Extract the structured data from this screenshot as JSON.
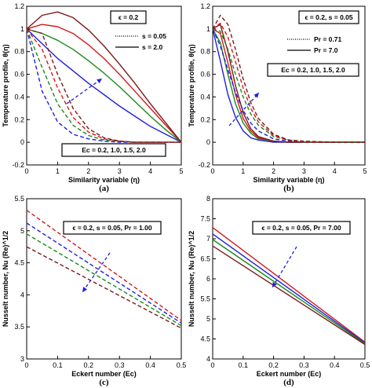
{
  "chart_data": [
    {
      "type": "line",
      "panel_label": "(a)",
      "xlabel": "Similarity variable (η)",
      "ylabel": "Temperature profile, θ(η)",
      "xlim": [
        0,
        5
      ],
      "ylim": [
        -0.2,
        1.2
      ],
      "xticks": [
        0,
        1,
        2,
        3,
        4,
        5
      ],
      "yticks": [
        -0.2,
        0,
        0.2,
        0.4,
        0.6,
        0.8,
        1,
        1.2
      ],
      "grid": false,
      "annotations": [
        "ϵ = 0.2",
        "Ec = 0.2, 1.0, 1.5, 2.0"
      ],
      "legend": {
        "placement": "top-right",
        "entries": [
          {
            "label": "s = 0.05",
            "dash": "dotted"
          },
          {
            "label": "s = 2.0",
            "dash": "solid"
          }
        ]
      },
      "series": [
        {
          "color": "#1f1fe0",
          "dash": "solid",
          "x": [
            0,
            0.5,
            1,
            1.5,
            2,
            2.5,
            3,
            3.5,
            4,
            4.5,
            5
          ],
          "y": [
            1.0,
            0.87,
            0.74,
            0.63,
            0.52,
            0.42,
            0.32,
            0.23,
            0.14,
            0.07,
            0.0
          ]
        },
        {
          "color": "#1a8a1a",
          "dash": "solid",
          "x": [
            0,
            0.5,
            1,
            1.5,
            2,
            2.5,
            3,
            3.5,
            4,
            4.5,
            5
          ],
          "y": [
            1.0,
            0.96,
            0.9,
            0.82,
            0.72,
            0.61,
            0.49,
            0.36,
            0.23,
            0.11,
            0.0
          ]
        },
        {
          "color": "#d41a1a",
          "dash": "solid",
          "x": [
            0,
            0.5,
            1,
            1.5,
            2,
            2.5,
            3,
            3.5,
            4,
            4.5,
            5
          ],
          "y": [
            1.0,
            1.04,
            1.02,
            0.96,
            0.86,
            0.74,
            0.6,
            0.45,
            0.3,
            0.15,
            0.0
          ]
        },
        {
          "color": "#7a1a1a",
          "dash": "solid",
          "x": [
            0,
            0.5,
            1,
            1.5,
            2,
            2.5,
            3,
            3.5,
            4,
            4.5,
            5
          ],
          "y": [
            1.0,
            1.12,
            1.15,
            1.1,
            0.99,
            0.85,
            0.69,
            0.52,
            0.34,
            0.17,
            0.0
          ]
        },
        {
          "color": "#1f1fe0",
          "dash": "dashed",
          "x": [
            0,
            0.5,
            1,
            1.5,
            2,
            2.5,
            3,
            3.5,
            4,
            4.5,
            5
          ],
          "y": [
            1.0,
            0.45,
            0.18,
            0.07,
            0.03,
            0.01,
            0.0,
            0.0,
            0.0,
            0.0,
            0.0
          ]
        },
        {
          "color": "#1a8a1a",
          "dash": "dashed",
          "x": [
            0,
            0.5,
            1,
            1.5,
            2,
            2.5,
            3,
            3.5,
            4,
            4.5,
            5
          ],
          "y": [
            1.0,
            0.66,
            0.34,
            0.15,
            0.06,
            0.02,
            0.01,
            0.0,
            0.0,
            0.0,
            0.0
          ]
        },
        {
          "color": "#d41a1a",
          "dash": "dashed",
          "x": [
            0,
            0.5,
            1,
            1.5,
            2,
            2.5,
            3,
            3.5,
            4,
            4.5,
            5
          ],
          "y": [
            1.0,
            0.82,
            0.48,
            0.22,
            0.09,
            0.03,
            0.01,
            0.0,
            0.0,
            0.0,
            0.0
          ]
        },
        {
          "color": "#7a1a1a",
          "dash": "dashed",
          "x": [
            0,
            0.5,
            1,
            1.5,
            2,
            2.5,
            3,
            3.5,
            4,
            4.5,
            5
          ],
          "y": [
            1.0,
            0.96,
            0.6,
            0.3,
            0.12,
            0.04,
            0.01,
            0.0,
            0.0,
            0.0,
            0.0
          ]
        }
      ]
    },
    {
      "type": "line",
      "panel_label": "(b)",
      "xlabel": "Similarity variable (η)",
      "ylabel": "Temperature profile, θ(η)",
      "xlim": [
        0,
        5
      ],
      "ylim": [
        -0.2,
        1.2
      ],
      "xticks": [
        0,
        1,
        2,
        3,
        4,
        5
      ],
      "yticks": [
        -0.2,
        0,
        0.2,
        0.4,
        0.6,
        0.8,
        1,
        1.2
      ],
      "grid": false,
      "annotations": [
        "ϵ = 0.2, s = 0.05",
        "Ec = 0.2, 1.0, 1.5, 2.0"
      ],
      "legend": {
        "placement": "top-right",
        "entries": [
          {
            "label": "Pr = 0.71",
            "dash": "dotted"
          },
          {
            "label": "Pr = 7.0",
            "dash": "solid"
          }
        ]
      },
      "series": [
        {
          "color": "#1f1fe0",
          "dash": "solid",
          "x": [
            0,
            0.25,
            0.5,
            0.75,
            1,
            1.25,
            1.5,
            2,
            2.5,
            3,
            4,
            5
          ],
          "y": [
            1.0,
            0.72,
            0.42,
            0.22,
            0.1,
            0.04,
            0.02,
            0.0,
            0.0,
            0.0,
            0.0,
            0.0
          ]
        },
        {
          "color": "#1a8a1a",
          "dash": "solid",
          "x": [
            0,
            0.25,
            0.5,
            0.75,
            1,
            1.25,
            1.5,
            2,
            2.5,
            3,
            4,
            5
          ],
          "y": [
            1.0,
            0.88,
            0.6,
            0.34,
            0.17,
            0.08,
            0.03,
            0.01,
            0.0,
            0.0,
            0.0,
            0.0
          ]
        },
        {
          "color": "#d41a1a",
          "dash": "solid",
          "x": [
            0,
            0.25,
            0.5,
            0.75,
            1,
            1.25,
            1.5,
            2,
            2.5,
            3,
            4,
            5
          ],
          "y": [
            1.0,
            0.96,
            0.7,
            0.42,
            0.21,
            0.1,
            0.04,
            0.01,
            0.0,
            0.0,
            0.0,
            0.0
          ]
        },
        {
          "color": "#7a1a1a",
          "dash": "solid",
          "x": [
            0,
            0.25,
            0.5,
            0.75,
            1,
            1.25,
            1.5,
            2,
            2.5,
            3,
            4,
            5
          ],
          "y": [
            1.0,
            1.04,
            0.8,
            0.5,
            0.26,
            0.12,
            0.05,
            0.01,
            0.0,
            0.0,
            0.0,
            0.0
          ]
        },
        {
          "color": "#1f1fe0",
          "dash": "dashed",
          "x": [
            0,
            0.25,
            0.5,
            0.75,
            1,
            1.25,
            1.5,
            2,
            2.5,
            3,
            4,
            5
          ],
          "y": [
            1.0,
            0.85,
            0.64,
            0.44,
            0.28,
            0.17,
            0.1,
            0.03,
            0.01,
            0.0,
            0.0,
            0.0
          ]
        },
        {
          "color": "#1a8a1a",
          "dash": "dashed",
          "x": [
            0,
            0.25,
            0.5,
            0.75,
            1,
            1.25,
            1.5,
            2,
            2.5,
            3,
            4,
            5
          ],
          "y": [
            1.0,
            0.98,
            0.82,
            0.6,
            0.4,
            0.25,
            0.15,
            0.05,
            0.02,
            0.0,
            0.0,
            0.0
          ]
        },
        {
          "color": "#d41a1a",
          "dash": "dashed",
          "x": [
            0,
            0.25,
            0.5,
            0.75,
            1,
            1.25,
            1.5,
            2,
            2.5,
            3,
            4,
            5
          ],
          "y": [
            1.0,
            1.05,
            0.93,
            0.71,
            0.48,
            0.3,
            0.18,
            0.06,
            0.02,
            0.0,
            0.0,
            0.0
          ]
        },
        {
          "color": "#7a1a1a",
          "dash": "dashed",
          "x": [
            0,
            0.25,
            0.5,
            0.75,
            1,
            1.25,
            1.5,
            2,
            2.5,
            3,
            4,
            5
          ],
          "y": [
            1.0,
            1.12,
            1.04,
            0.82,
            0.56,
            0.35,
            0.21,
            0.07,
            0.02,
            0.01,
            0.0,
            0.0
          ]
        }
      ]
    },
    {
      "type": "line",
      "panel_label": "(c)",
      "xlabel": "Eckert number (Ec)",
      "ylabel": "Nusselt number, Nu (Re)^1/2",
      "xlim": [
        0,
        0.5
      ],
      "ylim": [
        3,
        5.5
      ],
      "xticks": [
        0,
        0.1,
        0.2,
        0.3,
        0.4,
        0.5
      ],
      "yticks": [
        3,
        3.5,
        4,
        4.5,
        5,
        5.5
      ],
      "grid": false,
      "annotations": [
        "ϵ = 0.2, s = 0.05, Pr = 1.00"
      ],
      "series": [
        {
          "color": "#d41a1a",
          "dash": "dashed",
          "x": [
            0,
            0.5
          ],
          "y": [
            5.32,
            3.6
          ]
        },
        {
          "color": "#1f1fe0",
          "dash": "dashed",
          "x": [
            0,
            0.5
          ],
          "y": [
            5.12,
            3.56
          ]
        },
        {
          "color": "#1a8a1a",
          "dash": "dashed",
          "x": [
            0,
            0.5
          ],
          "y": [
            4.95,
            3.52
          ]
        },
        {
          "color": "#7a1a1a",
          "dash": "dashed",
          "x": [
            0,
            0.5
          ],
          "y": [
            4.75,
            3.48
          ]
        }
      ]
    },
    {
      "type": "line",
      "panel_label": "(d)",
      "xlabel": "Eckert number (Ec)",
      "ylabel": "Nusselt number, Nu (Re)^1/2",
      "xlim": [
        0,
        0.5
      ],
      "ylim": [
        4,
        8
      ],
      "xticks": [
        0,
        0.1,
        0.2,
        0.3,
        0.4,
        0.5
      ],
      "yticks": [
        4,
        4.5,
        5,
        5.5,
        6,
        6.5,
        7,
        7.5,
        8
      ],
      "grid": false,
      "annotations": [
        "ϵ = 0.2, s = 0.05, Pr = 7.00"
      ],
      "series": [
        {
          "color": "#d41a1a",
          "dash": "solid",
          "x": [
            0,
            0.5
          ],
          "y": [
            7.28,
            4.42
          ]
        },
        {
          "color": "#1f1fe0",
          "dash": "solid",
          "x": [
            0,
            0.5
          ],
          "y": [
            7.12,
            4.4
          ]
        },
        {
          "color": "#1a8a1a",
          "dash": "solid",
          "x": [
            0,
            0.5
          ],
          "y": [
            6.98,
            4.38
          ]
        },
        {
          "color": "#7a1a1a",
          "dash": "solid",
          "x": [
            0,
            0.5
          ],
          "y": [
            6.82,
            4.36
          ]
        }
      ]
    }
  ]
}
